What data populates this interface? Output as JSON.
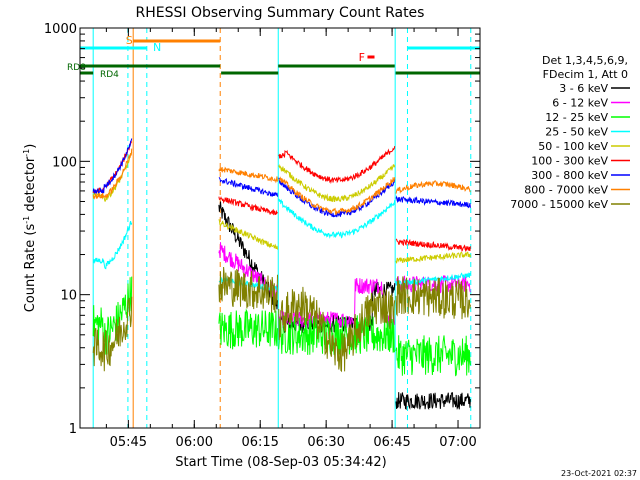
{
  "chart_data": {
    "type": "line",
    "title": "RHESSI Observing Summary Count Rates",
    "xlabel": "Start Time (08-Sep-03 05:34:42)",
    "ylabel_main": "Count Rate (s",
    "ylabel_sup1": "-1",
    "ylabel_mid": " detector",
    "ylabel_sup2": "-1",
    "ylabel_end": ")",
    "yscale": "log",
    "ylim": [
      1,
      1000
    ],
    "xlim_minutes_after_0534": [
      0,
      39
    ],
    "x_ticks": [
      {
        "label": "05:45",
        "min": 11
      },
      {
        "label": "06:00",
        "min": 26
      },
      {
        "label": "06:15",
        "min": 41
      },
      {
        "label": "06:30",
        "min": 56
      },
      {
        "label": "06:45",
        "min": 71
      },
      {
        "label": "07:00",
        "min": 86
      }
    ],
    "y_ticks": [
      {
        "label": "1",
        "v": 1
      },
      {
        "label": "10",
        "v": 10
      },
      {
        "label": "100",
        "v": 100
      },
      {
        "label": "1000",
        "v": 1000
      }
    ],
    "legend_header": [
      "Det 1,3,4,5,6,9,",
      "FDecim 1, Att 0"
    ],
    "series": [
      {
        "name": "3 - 6 keV",
        "color": "#000000"
      },
      {
        "name": "6 - 12 keV",
        "color": "#ff00ff"
      },
      {
        "name": "12 - 25 keV",
        "color": "#00ff00"
      },
      {
        "name": "25 - 50 keV",
        "color": "#00ffff"
      },
      {
        "name": "50 - 100 keV",
        "color": "#cccc00"
      },
      {
        "name": "100 - 300 keV",
        "color": "#ff0000"
      },
      {
        "name": "300 - 800 keV",
        "color": "#0000ff"
      },
      {
        "name": "800 - 7000 keV",
        "color": "#ff8000"
      },
      {
        "name": "7000 - 15000 keV",
        "color": "#808000"
      }
    ],
    "annotations": {
      "S": "S",
      "N": "N",
      "F": "F",
      "RD8": "RD8",
      "RD4": "RD4"
    },
    "footer_date": "23-Oct-2021 02:37"
  }
}
